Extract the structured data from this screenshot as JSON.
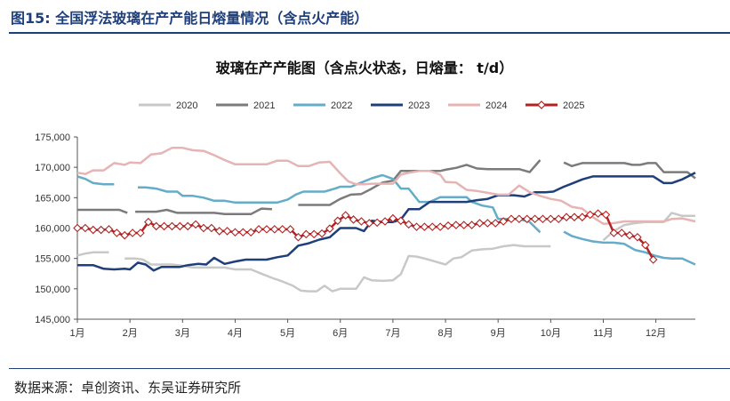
{
  "header": {
    "figure_title": "图15:  全国浮法玻璃在产产能日熔量情况（含点火产能）"
  },
  "source_note": "数据来源：卓创资讯、东吴证券研究所",
  "colors": {
    "header_accent": "#1f3f7a",
    "axis": "#555555"
  },
  "chart_data": {
    "type": "line",
    "title": "玻璃在产产能图（含点火状态，日熔量： t/d）",
    "xlabel": "",
    "ylabel": "",
    "ylim": [
      145000,
      175000
    ],
    "yticks": [
      145000,
      150000,
      155000,
      160000,
      165000,
      170000,
      175000
    ],
    "ytick_labels": [
      "145,000",
      "150,000",
      "155,000",
      "160,000",
      "165,000",
      "170,000",
      "175,000"
    ],
    "xlim": [
      1,
      12.75
    ],
    "xticks": [
      1,
      2,
      3,
      4,
      5,
      6,
      7,
      8,
      9,
      10,
      11,
      12
    ],
    "xtick_labels": [
      "1月",
      "2月",
      "3月",
      "4月",
      "5月",
      "6月",
      "7月",
      "8月",
      "9月",
      "10月",
      "11月",
      "12月"
    ],
    "grid": false,
    "legend_position": "top",
    "series": [
      {
        "name": "2020",
        "color": "#c8c8c8",
        "marker": "none",
        "segments": [
          {
            "x": [
              1.0,
              1.15,
              1.3,
              1.45,
              1.6
            ],
            "y": [
              155500,
              155800,
              156000,
              156000,
              156000
            ]
          },
          {
            "x": [
              1.9,
              2.1,
              2.25,
              2.4,
              2.6,
              2.8,
              3.0,
              3.2,
              3.4,
              3.6,
              3.8,
              4.0,
              4.15,
              4.3,
              4.5,
              4.7,
              4.9,
              5.1,
              5.25,
              5.4,
              5.55,
              5.7,
              5.85,
              6.0,
              6.15,
              6.3,
              6.45,
              6.6,
              6.8,
              7.0,
              7.15,
              7.3,
              7.45,
              7.6,
              7.8,
              8.0,
              8.15,
              8.3,
              8.5,
              8.7,
              8.9,
              9.1,
              9.3,
              9.5,
              9.7,
              9.85,
              10.0
            ],
            "y": [
              155000,
              155000,
              154800,
              154000,
              154000,
              154000,
              153800,
              153500,
              153500,
              153500,
              153500,
              153200,
              153200,
              153200,
              152500,
              151800,
              151200,
              150500,
              149700,
              149600,
              149600,
              150500,
              149600,
              150000,
              150000,
              150000,
              151900,
              151400,
              151300,
              151400,
              152400,
              155400,
              155300,
              155000,
              154500,
              154000,
              155000,
              155200,
              156300,
              156500,
              156600,
              157000,
              157200,
              157000,
              157000,
              157000,
              157000
            ]
          },
          {
            "x": [
              11.0,
              11.2,
              11.4,
              11.6,
              11.8,
              12.0,
              12.15,
              12.3,
              12.5,
              12.75
            ],
            "y": [
              158000,
              159500,
              160500,
              160800,
              161000,
              161000,
              161000,
              162500,
              162000,
              162000
            ]
          }
        ]
      },
      {
        "name": "2021",
        "color": "#7b7b7b",
        "marker": "none",
        "segments": [
          {
            "x": [
              1.0,
              1.2,
              1.4,
              1.6,
              1.8,
              1.95
            ],
            "y": [
              163000,
              163000,
              163000,
              163000,
              163000,
              162500
            ]
          },
          {
            "x": [
              2.1,
              2.3,
              2.5,
              2.7,
              2.9,
              3.0,
              3.2,
              3.4,
              3.6,
              3.8,
              4.0,
              4.15,
              4.3,
              4.5,
              4.7
            ],
            "y": [
              162700,
              162700,
              162700,
              163000,
              162500,
              162500,
              162500,
              162500,
              162500,
              162300,
              162300,
              162300,
              162300,
              163200,
              163100
            ]
          },
          {
            "x": [
              5.2,
              5.4,
              5.6,
              5.8,
              6.0,
              6.2,
              6.4,
              6.6,
              6.8,
              7.0,
              7.15,
              7.3,
              7.5,
              7.7,
              7.9,
              8.0,
              8.2,
              8.4,
              8.6,
              8.8,
              9.0,
              9.2,
              9.4,
              9.6,
              9.8
            ],
            "y": [
              163800,
              163800,
              163800,
              163800,
              164800,
              165500,
              165600,
              166500,
              167500,
              167800,
              169400,
              169400,
              169400,
              169400,
              169400,
              169600,
              169900,
              170400,
              169800,
              169700,
              169700,
              169700,
              169700,
              169200,
              171200
            ]
          },
          {
            "x": [
              10.25,
              10.4,
              10.6,
              10.8,
              11.0,
              11.2,
              11.4,
              11.55,
              11.7,
              11.85,
              12.0,
              12.15,
              12.3,
              12.45,
              12.6,
              12.75
            ],
            "y": [
              170800,
              170200,
              170700,
              170700,
              170700,
              170700,
              170700,
              170400,
              170400,
              170700,
              170700,
              169200,
              169200,
              169200,
              169200,
              168200
            ]
          }
        ]
      },
      {
        "name": "2022",
        "color": "#64acc8",
        "marker": "none",
        "segments": [
          {
            "x": [
              1.0,
              1.15,
              1.3,
              1.5,
              1.7
            ],
            "y": [
              168500,
              168100,
              167400,
              167200,
              167200
            ]
          },
          {
            "x": [
              2.15,
              2.3,
              2.5,
              2.7,
              2.9,
              3.0,
              3.2,
              3.4,
              3.6,
              3.8,
              4.0,
              4.2,
              4.4,
              4.6,
              4.8,
              5.0,
              5.15,
              5.3,
              5.5,
              5.7,
              5.9,
              6.0,
              6.2,
              6.4,
              6.6,
              6.8,
              7.0,
              7.15,
              7.3,
              7.5,
              7.7,
              7.9,
              8.0,
              8.2,
              8.4,
              8.5,
              8.7,
              8.9,
              9.0,
              9.2,
              9.4,
              9.6,
              9.8
            ],
            "y": [
              166700,
              166700,
              166500,
              166000,
              166000,
              165300,
              165300,
              165000,
              164500,
              164500,
              164200,
              164200,
              164200,
              164200,
              164200,
              164700,
              165500,
              166000,
              166000,
              166000,
              166500,
              166800,
              166800,
              167500,
              168200,
              168700,
              168100,
              166500,
              166500,
              164300,
              164300,
              165100,
              165100,
              165100,
              165100,
              164300,
              163700,
              163400,
              161500,
              161500,
              161500,
              161000,
              159300
            ]
          },
          {
            "x": [
              10.25,
              10.4,
              10.6,
              10.8,
              11.0,
              11.2,
              11.4,
              11.6,
              11.8,
              12.0,
              12.15,
              12.3,
              12.5,
              12.75
            ],
            "y": [
              159400,
              158700,
              158200,
              157800,
              157600,
              157600,
              157400,
              156400,
              156000,
              155400,
              155100,
              155000,
              155000,
              154000
            ]
          }
        ]
      },
      {
        "name": "2023",
        "color": "#1f3f7a",
        "marker": "none",
        "segments": [
          {
            "x": [
              1.0,
              1.15,
              1.3,
              1.5,
              1.7,
              1.9,
              2.0,
              2.15,
              2.3,
              2.45,
              2.6,
              2.8,
              2.95,
              3.1,
              3.3,
              3.45,
              3.6,
              3.8,
              4.0,
              4.2,
              4.4,
              4.6,
              4.8,
              5.0,
              5.2,
              5.4,
              5.6,
              5.8,
              6.0,
              6.15,
              6.3,
              6.45,
              6.6,
              6.8,
              7.0,
              7.15,
              7.3,
              7.5,
              7.7,
              7.9,
              8.0,
              8.2,
              8.4,
              8.6,
              8.8,
              9.0,
              9.15,
              9.3,
              9.5,
              9.7,
              9.9,
              10.05,
              10.25,
              10.4,
              10.6,
              10.8,
              11.0,
              11.2,
              11.4,
              11.6,
              11.8,
              11.95,
              12.15,
              12.3,
              12.5,
              12.75
            ],
            "y": [
              153900,
              153900,
              153900,
              153300,
              153200,
              153300,
              153200,
              154300,
              154000,
              153000,
              153600,
              153600,
              153600,
              153900,
              154100,
              154000,
              155100,
              154100,
              154500,
              154800,
              154800,
              154800,
              155200,
              155500,
              157100,
              157500,
              158100,
              158500,
              160000,
              160000,
              160000,
              159500,
              161200,
              161000,
              161000,
              161400,
              163100,
              163100,
              164300,
              164300,
              164300,
              164300,
              164300,
              164600,
              164800,
              165400,
              165400,
              165400,
              165200,
              165900,
              165900,
              166000,
              166800,
              167300,
              168000,
              168500,
              168500,
              168500,
              168500,
              168500,
              168500,
              168500,
              167400,
              167400,
              168000,
              169100
            ]
          }
        ]
      },
      {
        "name": "2024",
        "color": "#e6b4b4",
        "marker": "none",
        "segments": [
          {
            "x": [
              1.0,
              1.15,
              1.3,
              1.5,
              1.7,
              1.9,
              2.0,
              2.2,
              2.4,
              2.6,
              2.8,
              3.0,
              3.2,
              3.4,
              3.6,
              3.8,
              4.0,
              4.2,
              4.4,
              4.6,
              4.8,
              5.0,
              5.2,
              5.4,
              5.6,
              5.8,
              6.0,
              6.15,
              6.3,
              6.45,
              6.6,
              6.8,
              7.0,
              7.15,
              7.3,
              7.5,
              7.7,
              7.9,
              8.0,
              8.2,
              8.4,
              8.6,
              8.8,
              9.0,
              9.2,
              9.4,
              9.6,
              9.8,
              10.0,
              10.2,
              10.4,
              10.6,
              10.8,
              11.0,
              11.2,
              11.4,
              11.6,
              11.8,
              12.0,
              12.15,
              12.3,
              12.5,
              12.75
            ],
            "y": [
              169100,
              168900,
              169500,
              169500,
              170700,
              170400,
              170800,
              170700,
              172100,
              172300,
              173200,
              173200,
              172800,
              172700,
              172000,
              171200,
              170500,
              170500,
              170500,
              170500,
              171100,
              171100,
              170200,
              170200,
              170800,
              170900,
              169000,
              167700,
              167200,
              167200,
              167300,
              167300,
              167300,
              168800,
              169100,
              169400,
              169400,
              168800,
              167600,
              167500,
              166300,
              166100,
              165800,
              165500,
              165500,
              167000,
              165900,
              165300,
              164800,
              164500,
              163500,
              163200,
              161800,
              160700,
              160800,
              161100,
              161100,
              161100,
              161100,
              161100,
              161500,
              161600,
              161100
            ]
          }
        ]
      },
      {
        "name": "2025",
        "color": "#b22222",
        "marker": "diamond",
        "segments": [
          {
            "x": [
              1.0,
              1.15,
              1.3,
              1.45,
              1.6,
              1.75,
              1.9,
              2.05,
              2.2,
              2.35,
              2.5,
              2.65,
              2.8,
              2.95,
              3.1,
              3.25,
              3.4,
              3.55,
              3.7,
              3.85,
              4.0,
              4.15,
              4.3,
              4.45,
              4.6,
              4.75,
              4.9,
              5.05,
              5.2,
              5.35,
              5.5,
              5.65,
              5.8,
              5.95,
              6.1,
              6.25,
              6.4,
              6.55,
              6.7,
              6.85,
              7.0,
              7.15,
              7.3,
              7.45,
              7.6,
              7.75,
              7.9,
              8.05,
              8.2,
              8.35,
              8.5,
              8.65,
              8.8,
              8.95,
              9.1,
              9.25,
              9.4,
              9.55,
              9.7,
              9.85,
              10.0,
              10.15,
              10.3,
              10.45,
              10.6,
              10.75,
              10.9,
              11.05,
              11.2,
              11.35,
              11.5,
              11.65,
              11.8,
              11.95
            ],
            "y": [
              160000,
              160000,
              159700,
              159700,
              159800,
              159200,
              158800,
              159200,
              159200,
              161000,
              160300,
              160300,
              160300,
              160300,
              160300,
              160600,
              160000,
              160000,
              159500,
              159500,
              159300,
              159300,
              159300,
              159800,
              159800,
              159800,
              159800,
              159800,
              158500,
              159000,
              159000,
              159100,
              159900,
              161200,
              162100,
              161400,
              161100,
              160800,
              160900,
              161100,
              161600,
              161200,
              160600,
              160200,
              160200,
              160200,
              160200,
              160400,
              160500,
              160500,
              160500,
              160800,
              160800,
              160800,
              161100,
              161500,
              161500,
              161500,
              161500,
              161500,
              161500,
              161500,
              161800,
              161800,
              161800,
              162200,
              162400,
              162200,
              159200,
              159200,
              158800,
              158500,
              157200,
              154800
            ]
          }
        ]
      }
    ]
  }
}
